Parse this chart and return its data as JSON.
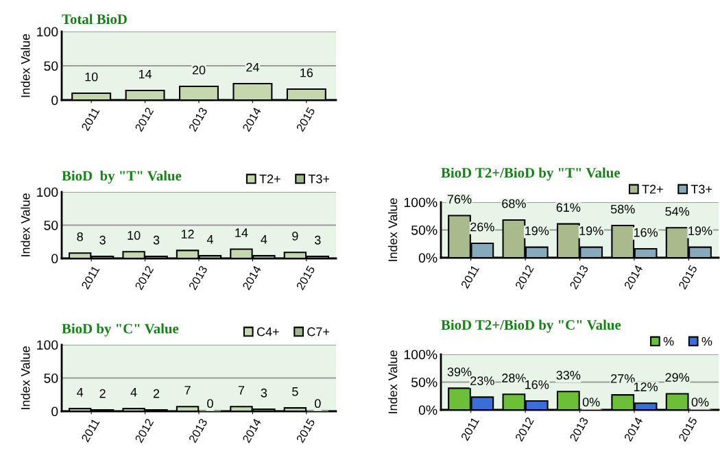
{
  "chart_data": [
    {
      "type": "bar",
      "title": "Total BioD",
      "ylabel": "Index Value",
      "categories": [
        "2011",
        "2012",
        "2013",
        "2014",
        "2015"
      ],
      "series": [
        {
          "color": "#c5d8ad",
          "values": [
            10,
            14,
            20,
            24,
            16
          ]
        }
      ],
      "ylim": [
        0,
        100
      ],
      "yticks": [
        0,
        50,
        100
      ],
      "grid": "y",
      "data_labels": true,
      "legend": false
    },
    {
      "type": "bar",
      "title": "BioD  by \"T\" Value",
      "ylabel": "Index Value",
      "categories": [
        "2011",
        "2012",
        "2013",
        "2014",
        "2015"
      ],
      "series": [
        {
          "name": "T2+",
          "color": "#c5d8ad",
          "values": [
            8,
            10,
            12,
            14,
            9
          ]
        },
        {
          "name": "T3+",
          "color": "#a3b78e",
          "values": [
            3,
            3,
            4,
            4,
            3
          ]
        }
      ],
      "ylim": [
        0,
        100
      ],
      "yticks": [
        0,
        50,
        100
      ],
      "grid": "y",
      "data_labels": true,
      "legend": "top right"
    },
    {
      "type": "bar",
      "title": "BioD T2+/BioD by \"T\" Value",
      "ylabel": "Index Value",
      "categories": [
        "2011",
        "2012",
        "2013",
        "2014",
        "2015"
      ],
      "series": [
        {
          "name": "T2+",
          "color": "#a9ba8d",
          "values": [
            76,
            68,
            61,
            58,
            54
          ],
          "value_labels": [
            "76%",
            "68%",
            "61%",
            "58%",
            "54%"
          ]
        },
        {
          "name": "T3+",
          "color": "#86a9bb",
          "values": [
            26,
            19,
            19,
            16,
            19
          ],
          "value_labels": [
            "26%",
            "19%",
            "19%",
            "16%",
            "19%"
          ]
        }
      ],
      "ylim": [
        0,
        100
      ],
      "yticks": [
        {
          "value": 0,
          "label": "0%"
        },
        {
          "value": 50,
          "label": "50%"
        },
        {
          "value": 100,
          "label": "100%"
        }
      ],
      "grid": "y",
      "legend": "top right"
    },
    {
      "type": "bar",
      "title": "BioD by \"C\" Value",
      "ylabel": "Index Value",
      "categories": [
        "2011",
        "2012",
        "2013",
        "2014",
        "2015"
      ],
      "series": [
        {
          "name": "C4+",
          "color": "#c5d8ad",
          "values": [
            4,
            4,
            7,
            7,
            5
          ]
        },
        {
          "name": "C7+",
          "color": "#a3b78e",
          "values": [
            2,
            2,
            0,
            3,
            0
          ]
        }
      ],
      "ylim": [
        0,
        100
      ],
      "yticks": [
        0,
        50,
        100
      ],
      "grid": "y",
      "data_labels": true,
      "legend": "top right"
    },
    {
      "type": "bar",
      "title": "BioD T2+/BioD by \"C\" Value",
      "ylabel": "Index Value",
      "categories": [
        "2011",
        "2012",
        "2013",
        "2014",
        "2015"
      ],
      "series": [
        {
          "name": "%",
          "color": "#6cbf36",
          "values": [
            39,
            28,
            33,
            27,
            29
          ],
          "value_labels": [
            "39%",
            "28%",
            "33%",
            "27%",
            "29%"
          ]
        },
        {
          "name": "%",
          "color": "#3a6fd8",
          "values": [
            23,
            16,
            0,
            12,
            0
          ],
          "value_labels": [
            "23%",
            "16%",
            "0%",
            "12%",
            "0%"
          ]
        }
      ],
      "ylim": [
        0,
        100
      ],
      "yticks": [
        {
          "value": 0,
          "label": "0%"
        },
        {
          "value": 50,
          "label": "50%"
        },
        {
          "value": 100,
          "label": "100%"
        }
      ],
      "grid": "y",
      "legend": "top right"
    }
  ]
}
